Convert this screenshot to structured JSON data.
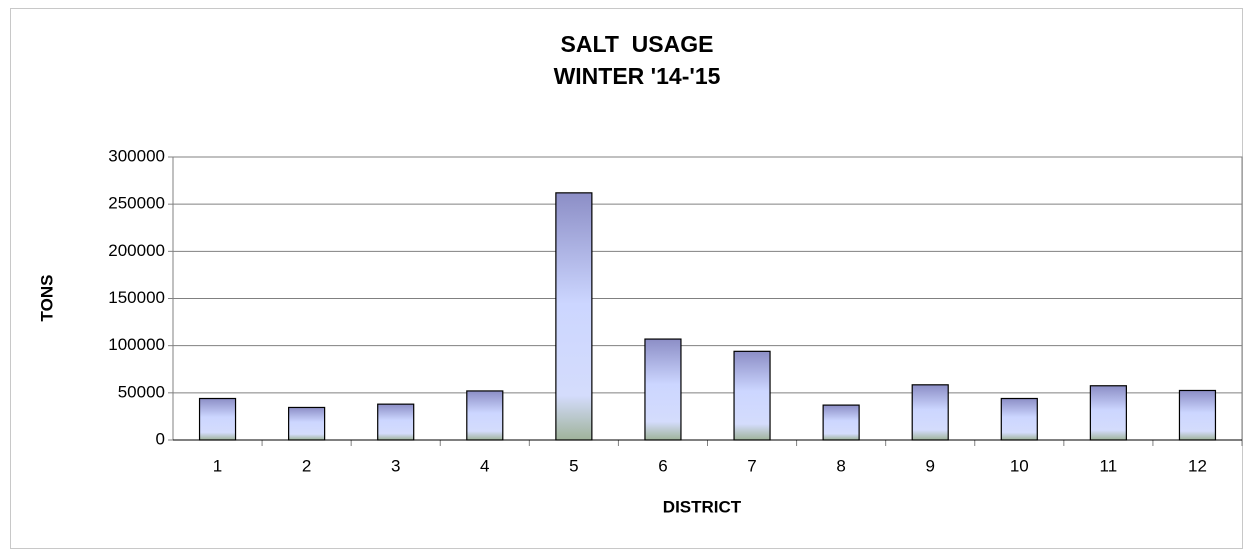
{
  "chart_data": {
    "type": "bar",
    "title": "SALT  USAGE",
    "subtitle": "WINTER '14-'15",
    "x_label": "DISTRICT",
    "y_label": "TONS",
    "categories": [
      "1",
      "2",
      "3",
      "4",
      "5",
      "6",
      "7",
      "8",
      "9",
      "10",
      "11",
      "12"
    ],
    "values": [
      44000,
      34500,
      38000,
      52000,
      262000,
      107000,
      94000,
      37000,
      58500,
      44000,
      57500,
      52500
    ],
    "color": "#ccd6ff",
    "ylim": [
      0,
      300000
    ],
    "yticks": [
      0,
      50000,
      100000,
      150000,
      200000,
      250000,
      300000
    ],
    "grid": true
  }
}
